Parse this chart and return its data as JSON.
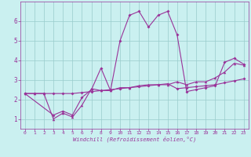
{
  "xlabel": "Windchill (Refroidissement éolien,°C)",
  "background_color": "#caf0f0",
  "line_color": "#993399",
  "grid_color": "#99cccc",
  "xlim": [
    -0.5,
    23.5
  ],
  "ylim": [
    0.5,
    7.0
  ],
  "xticks": [
    0,
    1,
    2,
    3,
    4,
    5,
    6,
    7,
    8,
    9,
    10,
    11,
    12,
    13,
    14,
    15,
    16,
    17,
    18,
    19,
    20,
    21,
    22,
    23
  ],
  "yticks": [
    1,
    2,
    3,
    4,
    5,
    6
  ],
  "line1_x": [
    0,
    1,
    2,
    3,
    4,
    5,
    6,
    7,
    8,
    9,
    10,
    11,
    12,
    13,
    14,
    15,
    16,
    17,
    18,
    19,
    20,
    21,
    22,
    23
  ],
  "line1_y": [
    2.3,
    2.3,
    2.3,
    2.3,
    2.3,
    2.3,
    2.35,
    2.4,
    2.45,
    2.5,
    2.55,
    2.6,
    2.65,
    2.7,
    2.75,
    2.8,
    2.55,
    2.6,
    2.65,
    2.7,
    2.75,
    2.85,
    2.95,
    3.05
  ],
  "line2_x": [
    0,
    3,
    4,
    5,
    6,
    7,
    8,
    9,
    10,
    11,
    12,
    13,
    14,
    15,
    16,
    17,
    18,
    19,
    20,
    21,
    22,
    23
  ],
  "line2_y": [
    2.3,
    1.2,
    1.4,
    1.2,
    2.1,
    2.5,
    3.6,
    2.45,
    5.0,
    6.3,
    6.5,
    5.7,
    6.3,
    6.5,
    5.3,
    2.4,
    2.5,
    2.6,
    2.7,
    3.9,
    4.1,
    3.8
  ],
  "line3_x": [
    0,
    1,
    2,
    3,
    4,
    5,
    6,
    7,
    8,
    9,
    10,
    11,
    12,
    13,
    14,
    15,
    16,
    17,
    18,
    19,
    20,
    21,
    22,
    23
  ],
  "line3_y": [
    2.3,
    2.3,
    2.3,
    1.0,
    1.3,
    1.1,
    1.7,
    2.55,
    2.45,
    2.45,
    2.6,
    2.6,
    2.7,
    2.75,
    2.75,
    2.75,
    2.9,
    2.75,
    2.9,
    2.9,
    3.1,
    3.4,
    3.85,
    3.75
  ]
}
